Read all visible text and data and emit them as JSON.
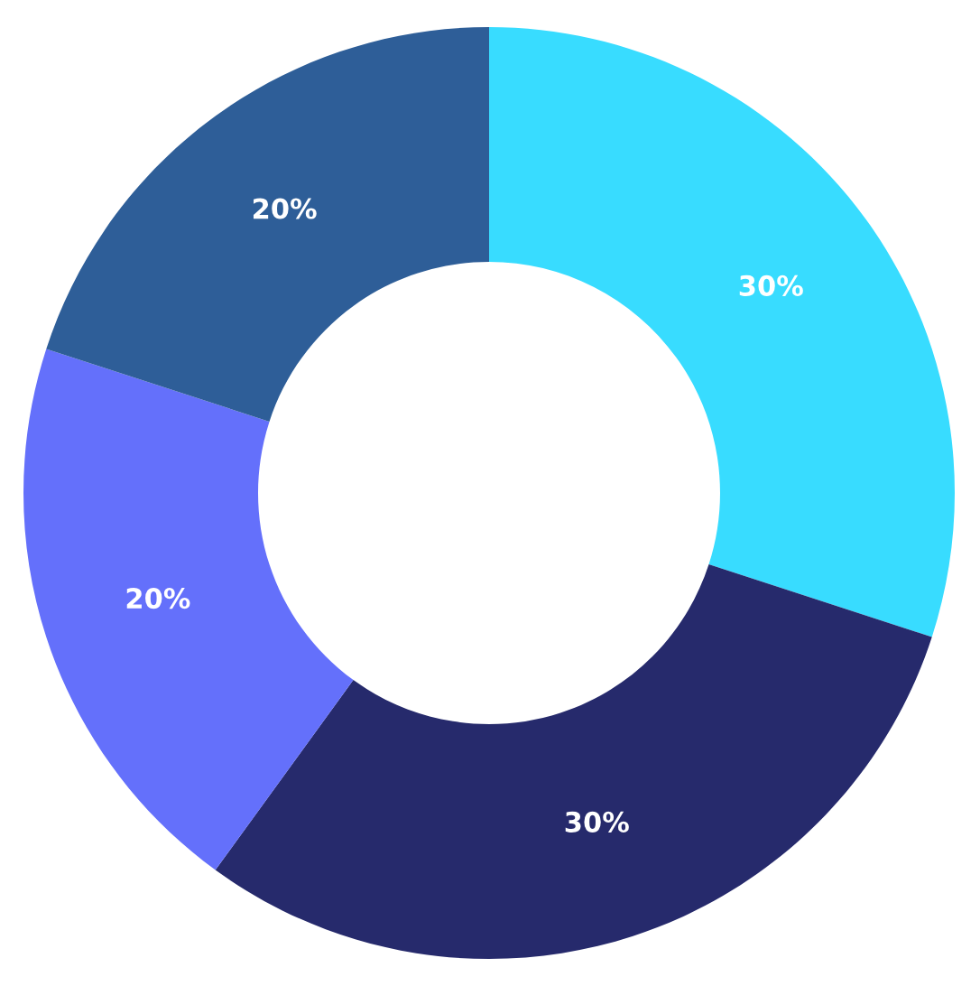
{
  "chart_data": {
    "type": "donut",
    "categories": [
      null,
      null,
      null,
      null
    ],
    "values": [
      30,
      30,
      20,
      20
    ],
    "colors": [
      "#38dcff",
      "#262a6c",
      "#6470fb",
      "#2e5e98"
    ],
    "value_labels": [
      "30%",
      "30%",
      "20%",
      "20%"
    ]
  }
}
